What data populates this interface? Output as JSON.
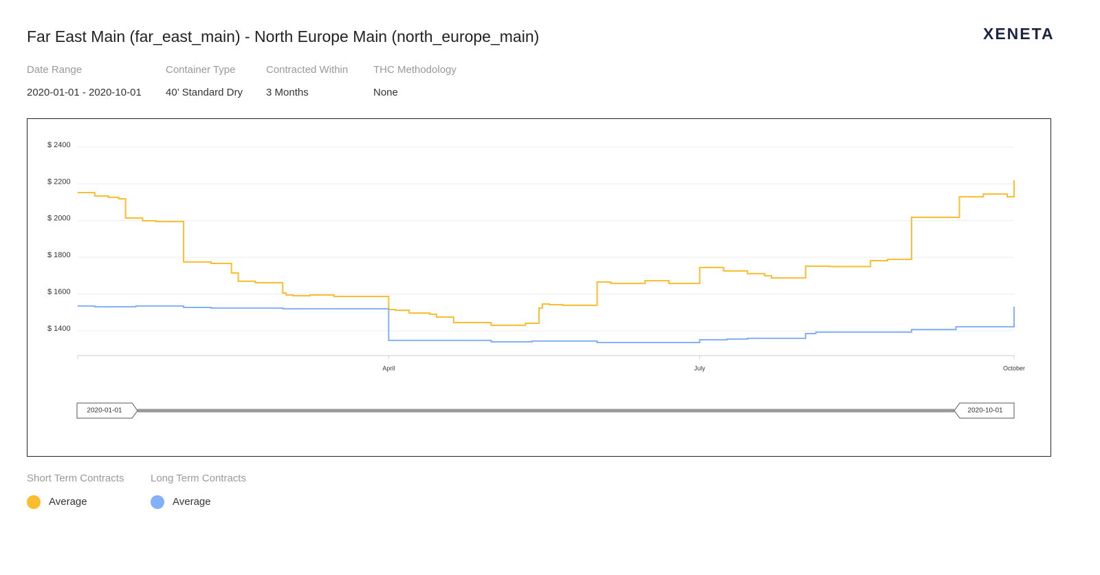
{
  "header": {
    "title": "Far East Main (far_east_main) - North Europe Main (north_europe_main)",
    "logo": "XENETA"
  },
  "filters": [
    {
      "label": "Date Range",
      "value": "2020-01-01 - 2020-10-01"
    },
    {
      "label": "Container Type",
      "value": "40’ Standard Dry"
    },
    {
      "label": "Contracted Within",
      "value": "3 Months"
    },
    {
      "label": "THC Methodology",
      "value": "None"
    }
  ],
  "chart_data": {
    "type": "step-line",
    "xlim": [
      "2020-01-01",
      "2020-10-01"
    ],
    "xticks": [
      {
        "value": "2020-04-01",
        "label": "April"
      },
      {
        "value": "2020-07-01",
        "label": "July"
      },
      {
        "value": "2020-10-01",
        "label": "October"
      }
    ],
    "ylim": [
      1265,
      2400
    ],
    "yticks": [
      {
        "value": 1400,
        "label": "$ 1400"
      },
      {
        "value": 1600,
        "label": "$ 1600"
      },
      {
        "value": 1800,
        "label": "$ 1800"
      },
      {
        "value": 2000,
        "label": "$ 2000"
      },
      {
        "value": 2200,
        "label": "$ 2200"
      },
      {
        "value": 2400,
        "label": "$ 2400"
      }
    ],
    "grid": true,
    "series": [
      {
        "group": "Short Term Contracts",
        "name": "Average",
        "color": "#fbbc2d",
        "x": [
          "2020-01-01",
          "2020-01-06",
          "2020-01-10",
          "2020-01-13",
          "2020-01-15",
          "2020-01-20",
          "2020-01-24",
          "2020-02-01",
          "2020-02-09",
          "2020-02-15",
          "2020-02-17",
          "2020-02-22",
          "2020-03-01",
          "2020-03-02",
          "2020-03-04",
          "2020-03-09",
          "2020-03-16",
          "2020-04-01",
          "2020-04-03",
          "2020-04-07",
          "2020-04-13",
          "2020-04-15",
          "2020-04-20",
          "2020-05-01",
          "2020-05-11",
          "2020-05-15",
          "2020-05-16",
          "2020-05-18",
          "2020-05-22",
          "2020-06-01",
          "2020-06-05",
          "2020-06-15",
          "2020-06-22",
          "2020-07-01",
          "2020-07-08",
          "2020-07-15",
          "2020-07-20",
          "2020-07-22",
          "2020-08-01",
          "2020-08-08",
          "2020-08-20",
          "2020-08-25",
          "2020-09-01",
          "2020-09-15",
          "2020-09-22",
          "2020-09-29",
          "2020-10-01"
        ],
        "values": [
          2153,
          2134,
          2127,
          2119,
          2014,
          1999,
          1995,
          1775,
          1767,
          1715,
          1670,
          1662,
          1606,
          1595,
          1591,
          1595,
          1587,
          1516,
          1512,
          1497,
          1490,
          1475,
          1445,
          1430,
          1441,
          1524,
          1546,
          1542,
          1539,
          1666,
          1658,
          1673,
          1658,
          1745,
          1726,
          1711,
          1700,
          1688,
          1752,
          1750,
          1782,
          1789,
          2018,
          2130,
          2145,
          2130,
          2220
        ]
      },
      {
        "group": "Long Term Contracts",
        "name": "Average",
        "color": "#82b1f7",
        "x": [
          "2020-01-01",
          "2020-01-06",
          "2020-01-18",
          "2020-02-01",
          "2020-02-09",
          "2020-03-01",
          "2020-04-01",
          "2020-05-01",
          "2020-05-13",
          "2020-06-01",
          "2020-07-01",
          "2020-07-09",
          "2020-07-15",
          "2020-08-01",
          "2020-08-04",
          "2020-09-01",
          "2020-09-14",
          "2020-10-01"
        ],
        "values": [
          1535,
          1531,
          1535,
          1527,
          1524,
          1520,
          1348,
          1340,
          1344,
          1336,
          1351,
          1355,
          1359,
          1385,
          1393,
          1407,
          1422,
          1531
        ]
      }
    ]
  }
}
